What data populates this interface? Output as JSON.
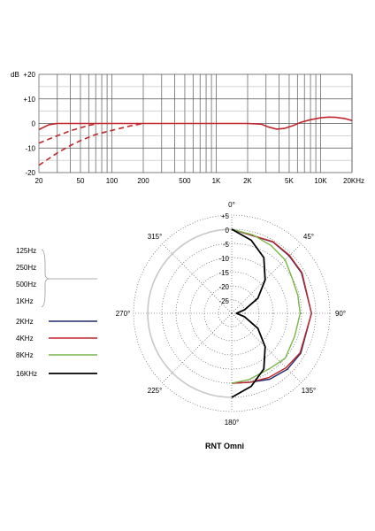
{
  "chart_data": [
    {
      "type": "line",
      "xscale": "log",
      "xlim": [
        20,
        20000
      ],
      "ylim": [
        -20,
        20
      ],
      "y_unit_label": "dB",
      "y_ticks": [
        "+20",
        "+10",
        "0",
        "-10",
        "-20"
      ],
      "x_ticks": [
        "20",
        "50",
        "100",
        "200",
        "500",
        "1K",
        "2K",
        "5K",
        "10K",
        "20KHz"
      ],
      "grid": true,
      "series": [
        {
          "style": "solid",
          "color": "#c0272d",
          "points": [
            [
              20,
              -2.5
            ],
            [
              25,
              -0.5
            ],
            [
              30,
              0
            ],
            [
              50,
              0
            ],
            [
              100,
              0
            ],
            [
              200,
              0
            ],
            [
              500,
              0
            ],
            [
              1000,
              0
            ],
            [
              2000,
              0
            ],
            [
              2700,
              -0.3
            ],
            [
              3200,
              -1.5
            ],
            [
              3800,
              -2.3
            ],
            [
              4500,
              -2
            ],
            [
              5500,
              -0.8
            ],
            [
              6500,
              0.5
            ],
            [
              8000,
              1.5
            ],
            [
              10000,
              2.3
            ],
            [
              12000,
              2.6
            ],
            [
              14000,
              2.5
            ],
            [
              17000,
              2
            ],
            [
              20000,
              1.2
            ]
          ]
        },
        {
          "style": "dashed",
          "color": "#c0272d",
          "points": [
            [
              20,
              -8
            ],
            [
              30,
              -5
            ],
            [
              40,
              -3
            ],
            [
              50,
              -1.8
            ],
            [
              60,
              -0.8
            ],
            [
              75,
              0
            ]
          ]
        },
        {
          "style": "dashed",
          "color": "#c0272d",
          "points": [
            [
              20,
              -17
            ],
            [
              30,
              -12
            ],
            [
              40,
              -9
            ],
            [
              50,
              -7
            ],
            [
              70,
              -4.5
            ],
            [
              100,
              -2.8
            ],
            [
              150,
              -1
            ],
            [
              200,
              0
            ]
          ]
        }
      ]
    },
    {
      "type": "polar",
      "title": "RNT Omni",
      "radial_labels": [
        "+5",
        "0",
        "-5",
        "-10",
        "-15",
        "-20",
        "-25"
      ],
      "angle_labels": [
        "0°",
        "45°",
        "90°",
        "135°",
        "180°",
        "225°",
        "270°",
        "315°"
      ],
      "legend_group": [
        "125Hz",
        "250Hz",
        "500Hz",
        "1KHz"
      ],
      "series": [
        {
          "name": "2KHz",
          "color": "#1f2a6b",
          "points": [
            [
              0,
              0
            ],
            [
              30,
              -0.6
            ],
            [
              45,
              -1
            ],
            [
              60,
              -1.2
            ],
            [
              90,
              -1.5
            ],
            [
              120,
              -1.5
            ],
            [
              135,
              -1.8
            ],
            [
              150,
              -2.8
            ],
            [
              165,
              -4.5
            ],
            [
              180,
              -5
            ]
          ]
        },
        {
          "name": "4KHz",
          "color": "#c0272d",
          "points": [
            [
              0,
              0
            ],
            [
              30,
              -0.5
            ],
            [
              45,
              -0.8
            ],
            [
              60,
              -1
            ],
            [
              90,
              -1.5
            ],
            [
              120,
              -1.8
            ],
            [
              135,
              -2.5
            ],
            [
              150,
              -3.5
            ],
            [
              165,
              -4.5
            ],
            [
              180,
              -5
            ]
          ]
        },
        {
          "name": "8KHz",
          "color": "#7ab648",
          "points": [
            [
              0,
              0
            ],
            [
              15,
              -1
            ],
            [
              30,
              -2
            ],
            [
              45,
              -3
            ],
            [
              60,
              -5
            ],
            [
              75,
              -5.5
            ],
            [
              90,
              -5.5
            ],
            [
              110,
              -6
            ],
            [
              130,
              -5
            ],
            [
              145,
              -6
            ],
            [
              165,
              -5.5
            ],
            [
              180,
              -5
            ]
          ]
        },
        {
          "name": "16KHz",
          "color": "#000000",
          "points": [
            [
              0,
              0
            ],
            [
              15,
              -3
            ],
            [
              30,
              -7
            ],
            [
              45,
              -13
            ],
            [
              60,
              -19
            ],
            [
              75,
              -25
            ],
            [
              90,
              -28
            ],
            [
              105,
              -25
            ],
            [
              120,
              -19
            ],
            [
              135,
              -13
            ],
            [
              150,
              -7
            ],
            [
              165,
              -3
            ],
            [
              180,
              0
            ]
          ]
        }
      ]
    }
  ]
}
